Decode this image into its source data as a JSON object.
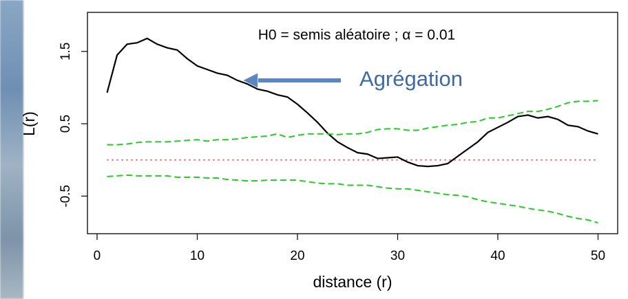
{
  "chart_data": {
    "type": "line",
    "xlabel": "distance (r)",
    "ylabel": "L(r)",
    "annotations": [
      "H0 = semis aléatoire ; α = 0.01",
      "Agrégation"
    ],
    "x": [
      1,
      2,
      3,
      4,
      5,
      6,
      7,
      8,
      9,
      10,
      11,
      12,
      13,
      14,
      15,
      16,
      17,
      18,
      19,
      20,
      21,
      22,
      23,
      24,
      25,
      26,
      27,
      28,
      29,
      30,
      31,
      32,
      33,
      34,
      35,
      36,
      37,
      38,
      39,
      40,
      41,
      42,
      43,
      44,
      45,
      46,
      47,
      48,
      49,
      50
    ],
    "series": [
      {
        "color": "#000000",
        "dash": "solid",
        "values": [
          0.93,
          1.45,
          1.6,
          1.62,
          1.68,
          1.6,
          1.55,
          1.52,
          1.4,
          1.3,
          1.25,
          1.2,
          1.17,
          1.1,
          1.05,
          0.98,
          0.95,
          0.9,
          0.87,
          0.77,
          0.65,
          0.52,
          0.37,
          0.25,
          0.17,
          0.1,
          0.08,
          0.02,
          0.03,
          0.04,
          -0.03,
          -0.08,
          -0.09,
          -0.08,
          -0.05,
          0.05,
          0.15,
          0.25,
          0.38,
          0.45,
          0.52,
          0.6,
          0.62,
          0.58,
          0.6,
          0.56,
          0.48,
          0.46,
          0.4,
          0.36
        ]
      },
      {
        "color": "#22cc22",
        "dash": "dashed",
        "values": [
          0.21,
          0.21,
          0.22,
          0.24,
          0.25,
          0.25,
          0.25,
          0.26,
          0.27,
          0.28,
          0.26,
          0.28,
          0.28,
          0.29,
          0.31,
          0.32,
          0.33,
          0.36,
          0.31,
          0.34,
          0.36,
          0.36,
          0.36,
          0.35,
          0.36,
          0.36,
          0.38,
          0.42,
          0.43,
          0.43,
          0.41,
          0.41,
          0.44,
          0.46,
          0.48,
          0.49,
          0.52,
          0.53,
          0.58,
          0.58,
          0.61,
          0.64,
          0.67,
          0.67,
          0.7,
          0.74,
          0.79,
          0.81,
          0.81,
          0.82
        ]
      },
      {
        "color": "#22cc22",
        "dash": "dashed",
        "values": [
          -0.23,
          -0.22,
          -0.21,
          -0.22,
          -0.22,
          -0.22,
          -0.22,
          -0.24,
          -0.24,
          -0.24,
          -0.25,
          -0.25,
          -0.27,
          -0.28,
          -0.29,
          -0.29,
          -0.28,
          -0.28,
          -0.28,
          -0.28,
          -0.3,
          -0.32,
          -0.33,
          -0.33,
          -0.35,
          -0.35,
          -0.35,
          -0.37,
          -0.39,
          -0.4,
          -0.4,
          -0.42,
          -0.44,
          -0.46,
          -0.48,
          -0.49,
          -0.51,
          -0.55,
          -0.58,
          -0.6,
          -0.62,
          -0.64,
          -0.67,
          -0.69,
          -0.71,
          -0.74,
          -0.78,
          -0.81,
          -0.83,
          -0.87
        ]
      }
    ],
    "reference_line": {
      "value": 0,
      "color": "#ff2020",
      "dash": "dotted"
    },
    "xlim": [
      -0.96,
      51.96
    ],
    "ylim": [
      -1.02,
      2.04
    ],
    "xticks": [
      0,
      10,
      20,
      30,
      40,
      50
    ],
    "yticks": [
      -0.5,
      0.5,
      1.5
    ],
    "grid": false
  }
}
